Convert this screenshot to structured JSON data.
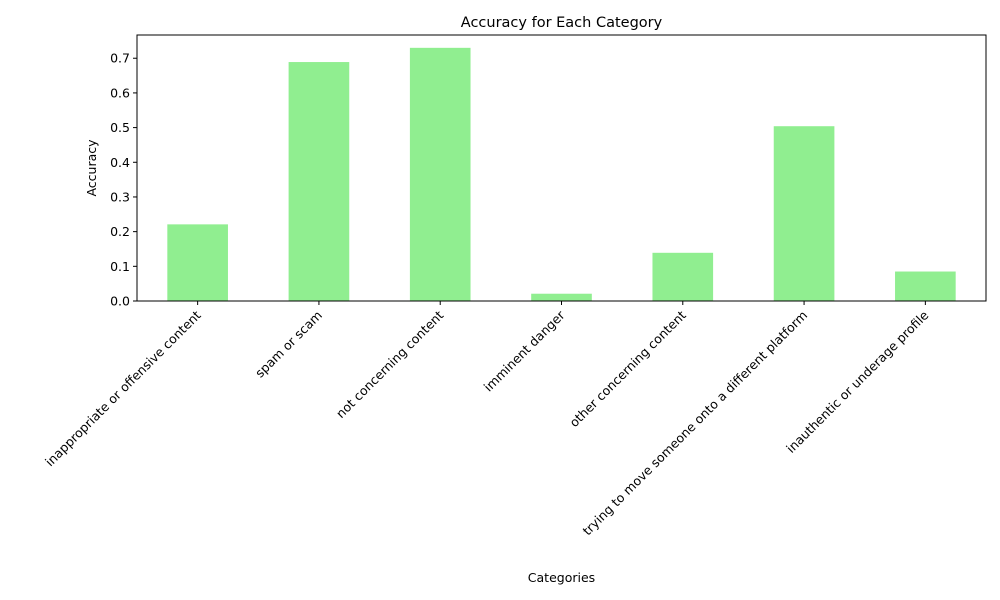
{
  "chart_data": {
    "type": "bar",
    "title": "Accuracy for Each Category",
    "xlabel": "Categories",
    "ylabel": "Accuracy",
    "categories": [
      "inappropriate or offensive content",
      "spam or scam",
      "not concerning content",
      "imminent danger",
      "other concerning content",
      "trying to move someone onto a different platform",
      "inauthentic or underage profile"
    ],
    "series": [
      {
        "values": [
          0.221,
          0.689,
          0.73,
          0.021,
          0.139,
          0.504,
          0.085
        ]
      }
    ],
    "ylim": [
      0,
      0.767
    ],
    "yticks": [
      0.0,
      0.1,
      0.2,
      0.3,
      0.4,
      0.5,
      0.6,
      0.7
    ],
    "ytick_labels": [
      "0.0",
      "0.1",
      "0.2",
      "0.3",
      "0.4",
      "0.5",
      "0.6",
      "0.7"
    ],
    "bar_color": "#90ee90",
    "grid": false,
    "legend": "none",
    "xtick_rotation": -45
  }
}
